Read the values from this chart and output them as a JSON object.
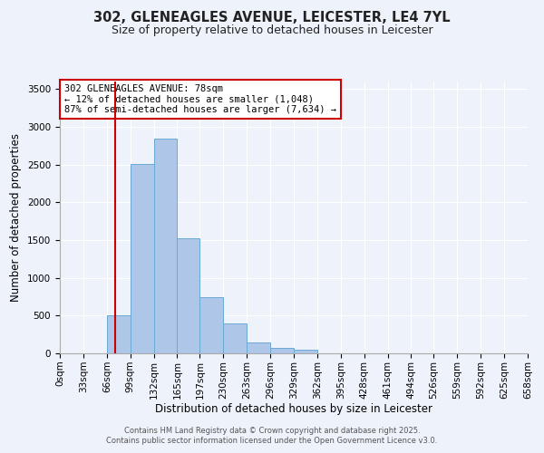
{
  "title": "302, GLENEAGLES AVENUE, LEICESTER, LE4 7YL",
  "subtitle": "Size of property relative to detached houses in Leicester",
  "xlabel": "Distribution of detached houses by size in Leicester",
  "ylabel": "Number of detached properties",
  "footnote1": "Contains HM Land Registry data © Crown copyright and database right 2025.",
  "footnote2": "Contains public sector information licensed under the Open Government Licence v3.0.",
  "bin_edges": [
    0,
    33,
    66,
    99,
    132,
    165,
    197,
    230,
    263,
    296,
    329,
    362,
    395,
    428,
    461,
    494,
    526,
    559,
    592,
    625,
    658
  ],
  "bar_heights": [
    0,
    0,
    500,
    2510,
    2840,
    1530,
    750,
    400,
    150,
    75,
    50,
    0,
    0,
    0,
    0,
    0,
    0,
    0,
    0,
    0
  ],
  "bar_color": "#aec6e8",
  "bar_edge_color": "#6aaad4",
  "property_size": 78,
  "annotation_title": "302 GLENEAGLES AVENUE: 78sqm",
  "annotation_line1": "← 12% of detached houses are smaller (1,048)",
  "annotation_line2": "87% of semi-detached houses are larger (7,634) →",
  "annotation_box_color": "#ffffff",
  "annotation_box_edge": "#cc0000",
  "vline_color": "#cc0000",
  "ylim": [
    0,
    3600
  ],
  "yticks": [
    0,
    500,
    1000,
    1500,
    2000,
    2500,
    3000,
    3500
  ],
  "bg_color": "#eef2fb",
  "title_fontsize": 10.5,
  "subtitle_fontsize": 9,
  "axis_label_fontsize": 8.5,
  "tick_fontsize": 7.5,
  "annotation_fontsize": 7.5,
  "footnote_fontsize": 6.0
}
